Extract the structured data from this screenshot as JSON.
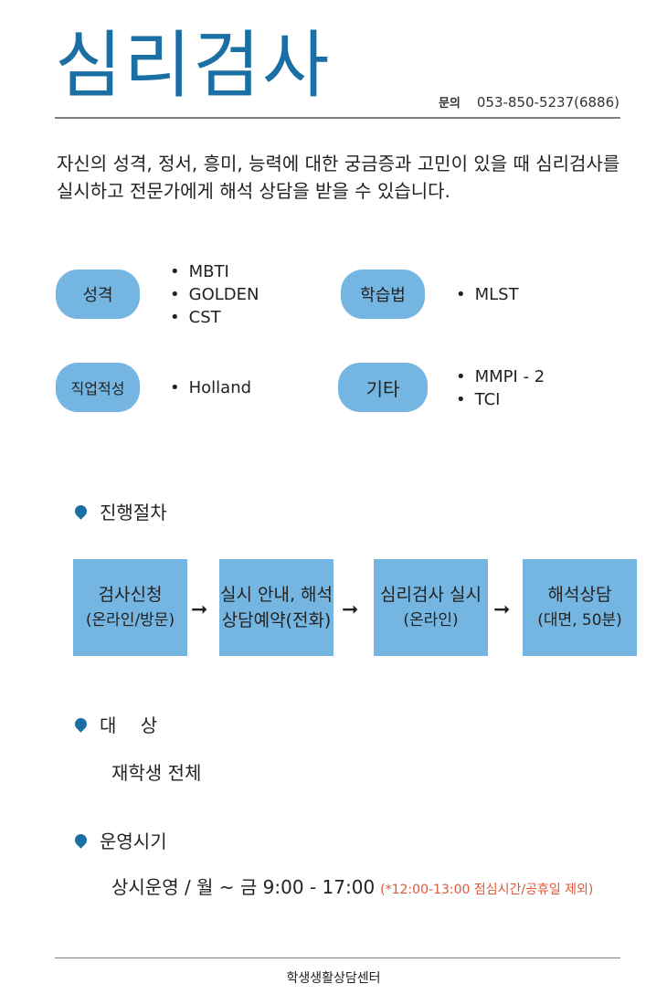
{
  "header": {
    "title": "심리검사",
    "contact_label": "문의",
    "contact_phone": "053-850-5237(6886)"
  },
  "intro": "자신의 성격, 정서, 흥미, 능력에 대한 궁금증과 고민이 있을 때 심리검사를 실시하고 전문가에게 해석 상담을 받을 수 있습니다.",
  "categories": [
    {
      "label": "성격",
      "items": [
        "MBTI",
        "GOLDEN",
        "CST"
      ]
    },
    {
      "label": "학습법",
      "items": [
        "MLST"
      ]
    },
    {
      "label": "직업적성",
      "items": [
        "Holland"
      ]
    },
    {
      "label": "기타",
      "items": [
        "MMPI - 2",
        "TCI"
      ]
    }
  ],
  "procedure": {
    "heading": "진행절차",
    "steps": [
      {
        "line1": "검사신청",
        "line2": "(온라인/방문)"
      },
      {
        "line1": "실시 안내, 해석",
        "line2": "상담예약(전화)"
      },
      {
        "line1": "심리검사 실시",
        "line2": "(온라인)"
      },
      {
        "line1": "해석상담",
        "line2": "(대면, 50분)"
      }
    ],
    "arrow": "➞"
  },
  "target": {
    "heading": "대　 상",
    "text": "재학생 전체"
  },
  "hours": {
    "heading": "운영시기",
    "text": "상시운영 / 월 ~ 금 9:00 - 17:00",
    "note": "(*12:00-13:00 점심시간/공휴일 제외)"
  },
  "footer": "학생생활상담센터",
  "colors": {
    "title": "#1a6fa5",
    "pill": "#74b6e1",
    "note": "#e0583a"
  }
}
